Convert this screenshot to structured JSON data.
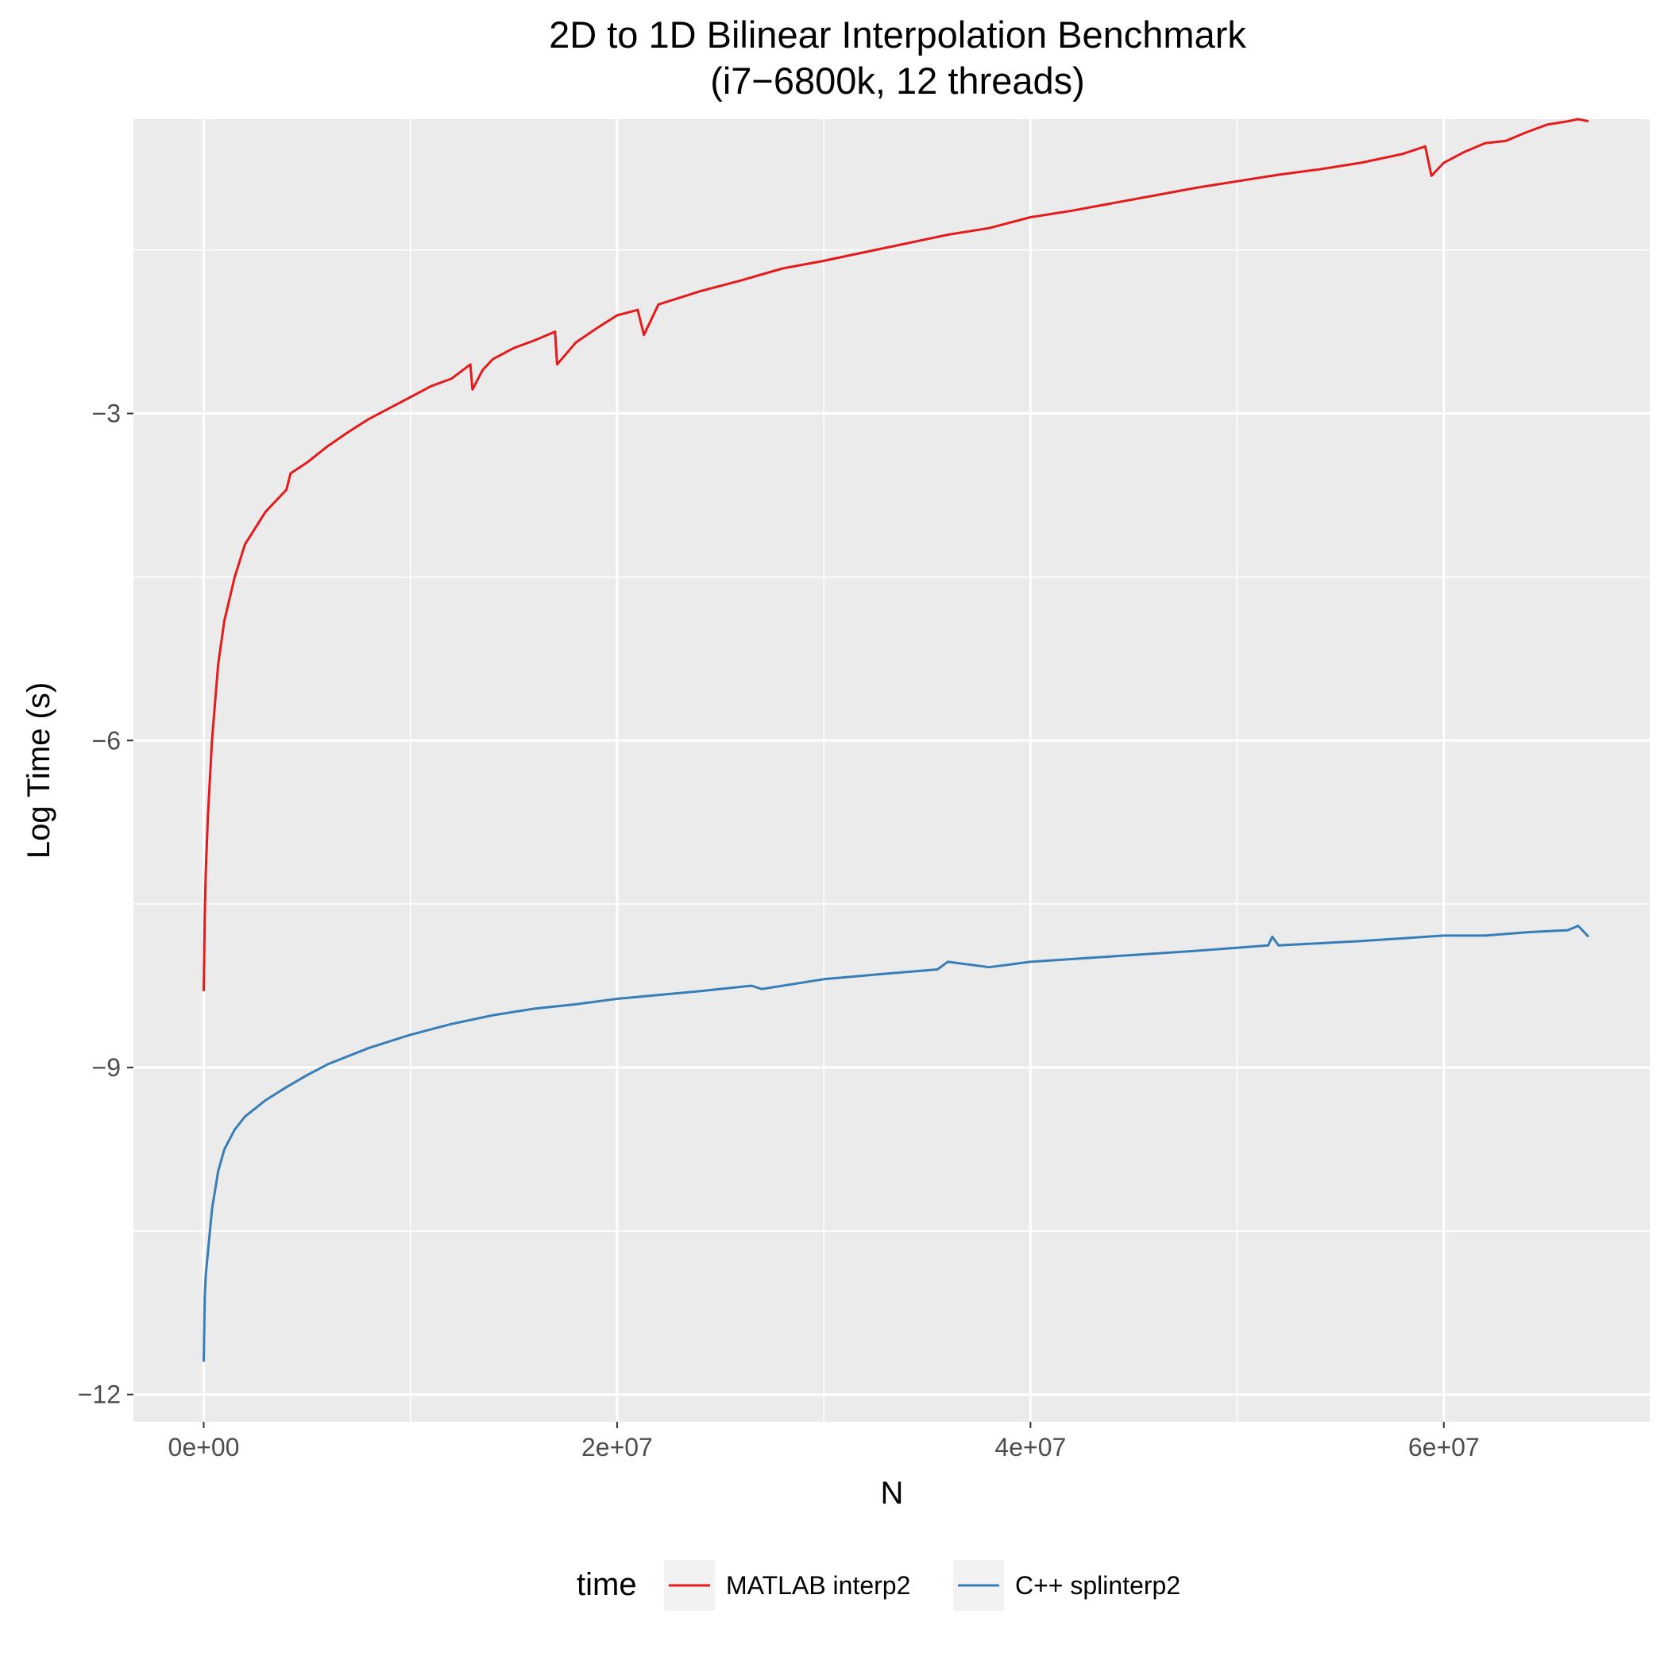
{
  "chart_data": {
    "type": "line",
    "title": "2D to 1D Bilinear Interpolation Benchmark",
    "subtitle": "(i7−6800k, 12 threads)",
    "xlabel": "N",
    "ylabel": "Log Time (s)",
    "xlim": [
      -3400000,
      70000000
    ],
    "ylim": [
      -12.25,
      -0.3
    ],
    "x_ticks": [
      0,
      20000000,
      40000000,
      60000000
    ],
    "x_tick_labels": [
      "0e+00",
      "2e+07",
      "4e+07",
      "6e+07"
    ],
    "y_ticks": [
      -3,
      -6,
      -9,
      -12
    ],
    "y_tick_labels": [
      "−3",
      "−6",
      "−9",
      "−12"
    ],
    "grid": true,
    "background": "#ebebeb",
    "legend_position": "bottom",
    "legend_title": "time",
    "series": [
      {
        "name": "MATLAB interp2",
        "color": "#e41a1c",
        "x": [
          0,
          50000,
          100000,
          200000,
          400000,
          700000,
          1000000,
          1500000,
          2000000,
          3000000,
          4000000,
          4200000,
          5000000,
          6000000,
          7000000,
          8000000,
          9000000,
          10000000,
          11000000,
          12000000,
          12900000,
          13000000,
          13500000,
          14000000,
          15000000,
          16000000,
          17000000,
          17100000,
          18000000,
          19000000,
          20000000,
          21000000,
          21300000,
          22000000,
          24000000,
          26000000,
          28000000,
          30000000,
          32000000,
          34000000,
          36000000,
          38000000,
          40000000,
          42000000,
          44000000,
          46000000,
          48000000,
          50000000,
          52000000,
          54000000,
          56000000,
          58000000,
          59100000,
          59400000,
          60000000,
          61000000,
          62000000,
          63000000,
          64000000,
          65000000,
          66000000,
          66500000,
          67000000
        ],
        "values": [
          -8.3,
          -7.6,
          -7.2,
          -6.7,
          -6.0,
          -5.3,
          -4.9,
          -4.5,
          -4.2,
          -3.9,
          -3.7,
          -3.55,
          -3.45,
          -3.3,
          -3.17,
          -3.05,
          -2.95,
          -2.85,
          -2.75,
          -2.68,
          -2.55,
          -2.78,
          -2.6,
          -2.5,
          -2.4,
          -2.33,
          -2.25,
          -2.55,
          -2.35,
          -2.22,
          -2.1,
          -2.05,
          -2.28,
          -2.0,
          -1.88,
          -1.78,
          -1.67,
          -1.6,
          -1.52,
          -1.44,
          -1.36,
          -1.3,
          -1.2,
          -1.14,
          -1.07,
          -1.0,
          -0.93,
          -0.87,
          -0.81,
          -0.76,
          -0.7,
          -0.62,
          -0.55,
          -0.82,
          -0.7,
          -0.6,
          -0.52,
          -0.5,
          -0.42,
          -0.35,
          -0.32,
          -0.3,
          -0.32
        ]
      },
      {
        "name": "C++ splinterp2",
        "color": "#377eb8",
        "x": [
          0,
          50000,
          100000,
          200000,
          400000,
          700000,
          1000000,
          1500000,
          2000000,
          3000000,
          4000000,
          5000000,
          6000000,
          8000000,
          10000000,
          12000000,
          14000000,
          16000000,
          18000000,
          20000000,
          24000000,
          26500000,
          27000000,
          30000000,
          33000000,
          35500000,
          36000000,
          38000000,
          40000000,
          44000000,
          48000000,
          51500000,
          51700000,
          52000000,
          56000000,
          60000000,
          62000000,
          64000000,
          65000000,
          66000000,
          66500000,
          67000000
        ],
        "values": [
          -11.7,
          -11.1,
          -10.9,
          -10.7,
          -10.3,
          -9.95,
          -9.75,
          -9.57,
          -9.45,
          -9.3,
          -9.18,
          -9.07,
          -8.97,
          -8.82,
          -8.7,
          -8.6,
          -8.52,
          -8.46,
          -8.42,
          -8.37,
          -8.3,
          -8.25,
          -8.28,
          -8.19,
          -8.14,
          -8.1,
          -8.03,
          -8.08,
          -8.03,
          -7.98,
          -7.93,
          -7.88,
          -7.8,
          -7.88,
          -7.84,
          -7.79,
          -7.79,
          -7.76,
          -7.75,
          -7.74,
          -7.7,
          -7.8
        ]
      }
    ]
  }
}
